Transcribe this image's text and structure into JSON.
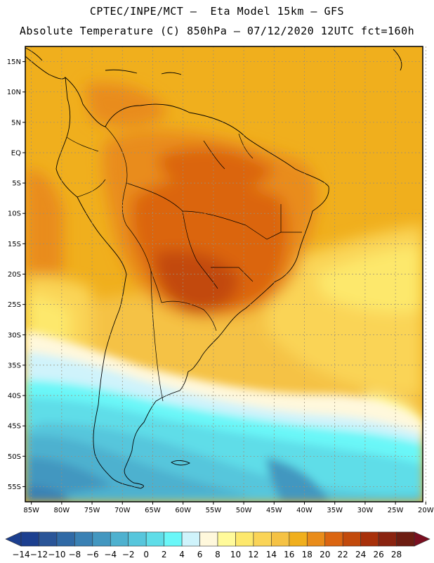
{
  "header": {
    "line1": "CPTEC/INPE/MCT –  Eta Model 15km – GFS",
    "line2": "Absolute Temperature (C) 850hPa – 07/12/2020 12UTC fct=160h"
  },
  "axes": {
    "lat_labels": [
      "15N",
      "10N",
      "5N",
      "EQ",
      "5S",
      "10S",
      "15S",
      "20S",
      "25S",
      "30S",
      "35S",
      "40S",
      "45S",
      "50S",
      "55S"
    ],
    "lat_values": [
      15,
      10,
      5,
      0,
      -5,
      -10,
      -15,
      -20,
      -25,
      -30,
      -35,
      -40,
      -45,
      -50,
      -55
    ],
    "lon_labels": [
      "85W",
      "80W",
      "75W",
      "70W",
      "65W",
      "60W",
      "55W",
      "50W",
      "45W",
      "40W",
      "35W",
      "30W",
      "25W",
      "20W"
    ],
    "lon_values": [
      -85,
      -80,
      -75,
      -70,
      -65,
      -60,
      -55,
      -50,
      -45,
      -40,
      -35,
      -30,
      -25,
      -20
    ],
    "lat_range": [
      -57.5,
      17.5
    ],
    "lon_range": [
      -86,
      -20.5
    ]
  },
  "colorbar": {
    "labels": [
      "-14",
      "-12",
      "-10",
      "-8",
      "-6",
      "-4",
      "-2",
      "0",
      "2",
      "4",
      "6",
      "8",
      "10",
      "12",
      "14",
      "16",
      "18",
      "20",
      "22",
      "24",
      "26",
      "28"
    ],
    "colors": [
      "#1c3f8f",
      "#2a5598",
      "#306aa6",
      "#3a81b4",
      "#4397c0",
      "#4eb1cf",
      "#57c6dc",
      "#5fdde8",
      "#6af7f8",
      "#cff3fb",
      "#fff8dc",
      "#fffa9a",
      "#fde86c",
      "#fad457",
      "#f5c244",
      "#f0af1d",
      "#e98c1a",
      "#db6511",
      "#c24a0c",
      "#a8300a",
      "#8a2310",
      "#6d1d12"
    ]
  },
  "field": {
    "units": "C",
    "level": "850hPa"
  }
}
